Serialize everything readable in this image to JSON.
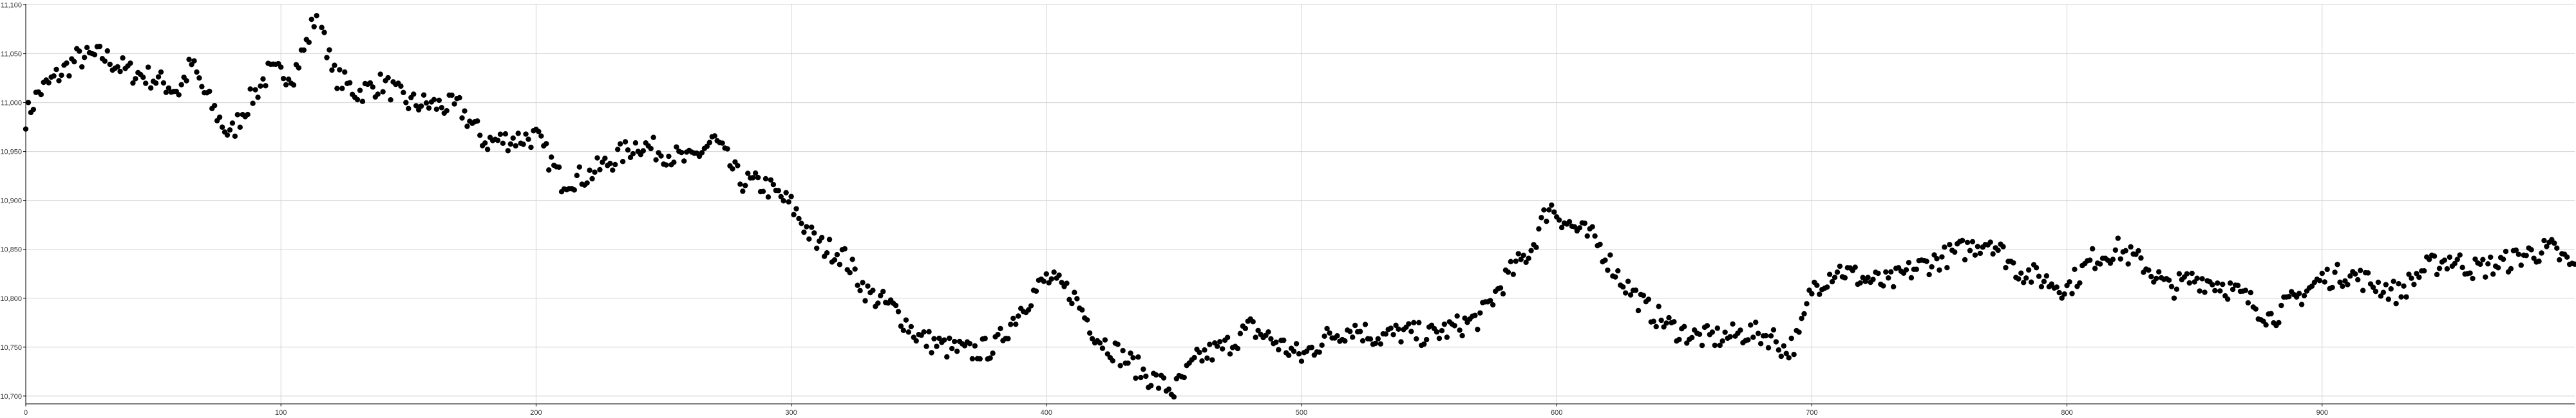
{
  "chart_data": {
    "type": "scatter",
    "title": "",
    "xlabel": "",
    "ylabel": "",
    "grid": true,
    "marker_color": "#000000",
    "xlim": [
      0,
      999
    ],
    "ylim": [
      10692,
      11101
    ],
    "x_ticks": [
      0,
      100,
      200,
      300,
      400,
      500,
      600,
      700,
      800,
      900
    ],
    "x_tick_labels": [
      "0",
      "100",
      "200",
      "300",
      "400",
      "500",
      "600",
      "700",
      "800",
      "900"
    ],
    "y_ticks": [
      10700,
      10750,
      10800,
      10850,
      10900,
      10950,
      11000,
      11050,
      11100
    ],
    "y_tick_labels": [
      "10,700",
      "10,750",
      "10,800",
      "10,850",
      "10,900",
      "10,950",
      "11,000",
      "11,050",
      "11,100"
    ],
    "trend_knots": [
      [
        0,
        10985
      ],
      [
        5,
        11010
      ],
      [
        20,
        11045
      ],
      [
        30,
        11048
      ],
      [
        40,
        11032
      ],
      [
        50,
        11025
      ],
      [
        60,
        11012
      ],
      [
        65,
        11040
      ],
      [
        70,
        11010
      ],
      [
        80,
        10965
      ],
      [
        85,
        10990
      ],
      [
        95,
        11030
      ],
      [
        105,
        11030
      ],
      [
        110,
        11060
      ],
      [
        115,
        11100
      ],
      [
        120,
        11030
      ],
      [
        130,
        11010
      ],
      [
        140,
        11020
      ],
      [
        150,
        11000
      ],
      [
        170,
        10995
      ],
      [
        180,
        10960
      ],
      [
        200,
        10965
      ],
      [
        210,
        10920
      ],
      [
        220,
        10925
      ],
      [
        240,
        10958
      ],
      [
        260,
        10940
      ],
      [
        270,
        10962
      ],
      [
        280,
        10920
      ],
      [
        290,
        10915
      ],
      [
        300,
        10895
      ],
      [
        310,
        10855
      ],
      [
        320,
        10845
      ],
      [
        330,
        10805
      ],
      [
        340,
        10790
      ],
      [
        350,
        10760
      ],
      [
        360,
        10750
      ],
      [
        370,
        10745
      ],
      [
        380,
        10750
      ],
      [
        390,
        10790
      ],
      [
        400,
        10820
      ],
      [
        410,
        10805
      ],
      [
        420,
        10760
      ],
      [
        430,
        10740
      ],
      [
        440,
        10720
      ],
      [
        450,
        10705
      ],
      [
        460,
        10740
      ],
      [
        470,
        10750
      ],
      [
        480,
        10770
      ],
      [
        490,
        10755
      ],
      [
        500,
        10740
      ],
      [
        510,
        10760
      ],
      [
        520,
        10770
      ],
      [
        530,
        10760
      ],
      [
        540,
        10765
      ],
      [
        550,
        10762
      ],
      [
        560,
        10770
      ],
      [
        570,
        10780
      ],
      [
        580,
        10820
      ],
      [
        590,
        10850
      ],
      [
        597,
        10895
      ],
      [
        605,
        10875
      ],
      [
        615,
        10860
      ],
      [
        625,
        10820
      ],
      [
        635,
        10790
      ],
      [
        645,
        10770
      ],
      [
        655,
        10760
      ],
      [
        665,
        10760
      ],
      [
        675,
        10765
      ],
      [
        685,
        10760
      ],
      [
        690,
        10745
      ],
      [
        695,
        10760
      ],
      [
        700,
        10810
      ],
      [
        710,
        10830
      ],
      [
        720,
        10820
      ],
      [
        730,
        10815
      ],
      [
        740,
        10830
      ],
      [
        750,
        10840
      ],
      [
        760,
        10850
      ],
      [
        770,
        10860
      ],
      [
        780,
        10830
      ],
      [
        790,
        10820
      ],
      [
        800,
        10810
      ],
      [
        810,
        10840
      ],
      [
        820,
        10850
      ],
      [
        830,
        10835
      ],
      [
        840,
        10810
      ],
      [
        850,
        10820
      ],
      [
        860,
        10815
      ],
      [
        870,
        10800
      ],
      [
        880,
        10780
      ],
      [
        890,
        10800
      ],
      [
        900,
        10820
      ],
      [
        910,
        10825
      ],
      [
        920,
        10815
      ],
      [
        930,
        10805
      ],
      [
        940,
        10830
      ],
      [
        950,
        10840
      ],
      [
        960,
        10830
      ],
      [
        970,
        10835
      ],
      [
        980,
        10845
      ],
      [
        990,
        10850
      ],
      [
        999,
        10830
      ]
    ],
    "n_points": 1000,
    "noise_amplitude": 12,
    "seed": 7
  }
}
